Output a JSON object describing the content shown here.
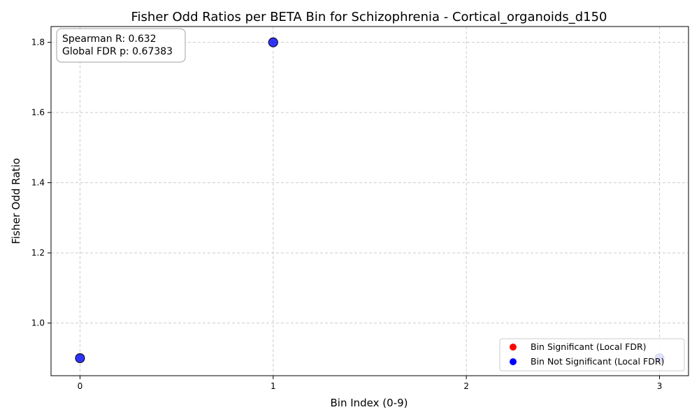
{
  "chart_data": {
    "type": "scatter",
    "title": "Fisher Odd Ratios per BETA Bin for Schizophrenia - Cortical_organoids_d150",
    "xlabel": "Bin Index (0-9)",
    "ylabel": "Fisher Odd Ratio",
    "xlim": [
      -0.15,
      3.15
    ],
    "ylim": [
      0.85,
      1.845
    ],
    "x_ticks": [
      0,
      1,
      2,
      3
    ],
    "x_tick_labels": [
      "0",
      "1",
      "2",
      "3"
    ],
    "y_ticks": [
      1.0,
      1.2,
      1.4,
      1.6,
      1.8
    ],
    "y_tick_labels": [
      "1.0",
      "1.2",
      "1.4",
      "1.6",
      "1.8"
    ],
    "grid": true,
    "series": [
      {
        "name": "Bin Significant (Local FDR)",
        "color": "#ff0000",
        "points": []
      },
      {
        "name": "Bin Not Significant (Local FDR)",
        "color": "#0000ff",
        "points": [
          {
            "x": 0,
            "y": 0.9
          },
          {
            "x": 1,
            "y": 1.8
          },
          {
            "x": 3,
            "y": 0.9
          }
        ]
      }
    ],
    "legend_position": "lower-right",
    "annotation": {
      "line1": "Spearman R: 0.632",
      "line2": "Global FDR p: 0.67383"
    }
  }
}
